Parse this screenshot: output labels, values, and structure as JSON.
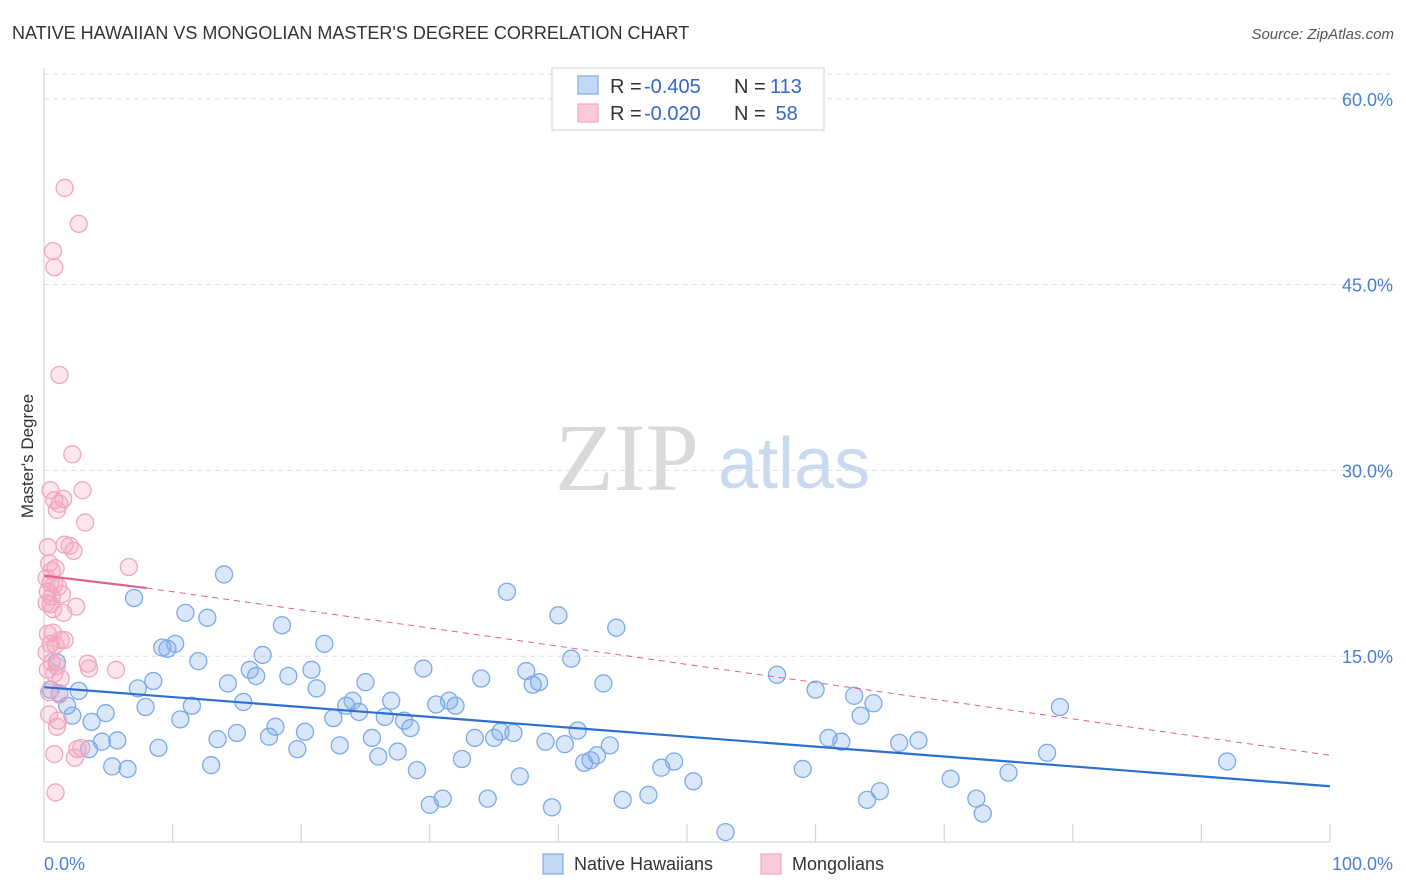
{
  "chart_data": {
    "type": "scatter",
    "title": "NATIVE HAWAIIAN VS MONGOLIAN MASTER'S DEGREE CORRELATION CHART",
    "source": "Source: ZipAtlas.com",
    "ylabel": "Master's Degree",
    "xlabel": "",
    "xlim": [
      0,
      100
    ],
    "ylim": [
      0,
      62
    ],
    "x_tick_labels": [
      "0.0%",
      "100.0%"
    ],
    "y_ticks": [
      {
        "value": 15,
        "label": "15.0%"
      },
      {
        "value": 30,
        "label": "30.0%"
      },
      {
        "value": 45,
        "label": "45.0%"
      },
      {
        "value": 60,
        "label": "60.0%"
      }
    ],
    "watermark": {
      "part1": "ZIP",
      "part2": "atlas"
    },
    "legend_stats": [
      {
        "r_label": "R = ",
        "r_value": "-0.405",
        "n_label": "N = ",
        "n_value": "113"
      },
      {
        "r_label": "R = ",
        "r_value": "-0.020",
        "n_label": "N = ",
        "n_value": " 58"
      }
    ],
    "series": [
      {
        "name": "Native Hawaiians",
        "color": "#7aaae8",
        "line_color": "#2b6fd0",
        "trend": {
          "x0": 0,
          "y0": 12.5,
          "x1": 100,
          "y1": 4.5
        },
        "points": [
          [
            0.5,
            12.3
          ],
          [
            1,
            14.5
          ],
          [
            1.2,
            12
          ],
          [
            1.8,
            11
          ],
          [
            2.2,
            10.2
          ],
          [
            2.7,
            12.2
          ],
          [
            3.5,
            7.5
          ],
          [
            3.7,
            9.7
          ],
          [
            4.5,
            8.1
          ],
          [
            4.8,
            10.4
          ],
          [
            5.3,
            6.1
          ],
          [
            5.7,
            8.2
          ],
          [
            6.5,
            5.9
          ],
          [
            7,
            19.7
          ],
          [
            7.3,
            12.4
          ],
          [
            7.9,
            10.9
          ],
          [
            8.5,
            13
          ],
          [
            8.9,
            7.6
          ],
          [
            9.2,
            15.7
          ],
          [
            9.6,
            15.6
          ],
          [
            10.2,
            16
          ],
          [
            10.6,
            9.9
          ],
          [
            11,
            18.5
          ],
          [
            11.5,
            11
          ],
          [
            12,
            14.6
          ],
          [
            12.7,
            18.1
          ],
          [
            13,
            6.2
          ],
          [
            13.5,
            8.3
          ],
          [
            14,
            21.6
          ],
          [
            14.3,
            12.8
          ],
          [
            15,
            8.8
          ],
          [
            15.5,
            11.3
          ],
          [
            16,
            13.9
          ],
          [
            16.5,
            13.4
          ],
          [
            17,
            15.1
          ],
          [
            17.5,
            8.5
          ],
          [
            18,
            9.3
          ],
          [
            18.5,
            17.5
          ],
          [
            19,
            13.4
          ],
          [
            19.7,
            7.5
          ],
          [
            20.3,
            8.9
          ],
          [
            20.8,
            13.9
          ],
          [
            21.2,
            12.4
          ],
          [
            21.8,
            16
          ],
          [
            22.5,
            10
          ],
          [
            23,
            7.8
          ],
          [
            23.5,
            11
          ],
          [
            24,
            11.4
          ],
          [
            24.5,
            10.5
          ],
          [
            25,
            12.9
          ],
          [
            25.5,
            8.4
          ],
          [
            26,
            6.9
          ],
          [
            26.5,
            10.1
          ],
          [
            27,
            11.4
          ],
          [
            27.5,
            7.3
          ],
          [
            28,
            9.8
          ],
          [
            28.5,
            9.2
          ],
          [
            29,
            5.8
          ],
          [
            29.5,
            14
          ],
          [
            30,
            3
          ],
          [
            30.5,
            11.1
          ],
          [
            31,
            3.5
          ],
          [
            31.5,
            11.4
          ],
          [
            32,
            11
          ],
          [
            32.5,
            6.7
          ],
          [
            33.5,
            8.4
          ],
          [
            34,
            13.2
          ],
          [
            34.5,
            3.5
          ],
          [
            35,
            8.4
          ],
          [
            35.5,
            8.9
          ],
          [
            36.5,
            8.8
          ],
          [
            37,
            5.3
          ],
          [
            37.5,
            13.8
          ],
          [
            38,
            12.7
          ],
          [
            38.5,
            12.9
          ],
          [
            39,
            8.1
          ],
          [
            39.5,
            2.8
          ],
          [
            40,
            18.3
          ],
          [
            40.5,
            7.9
          ],
          [
            41,
            14.8
          ],
          [
            41.5,
            9
          ],
          [
            42,
            6.4
          ],
          [
            42.5,
            6.6
          ],
          [
            43,
            7
          ],
          [
            43.5,
            12.8
          ],
          [
            44,
            7.8
          ],
          [
            44.5,
            17.3
          ],
          [
            45,
            3.4
          ],
          [
            47,
            3.8
          ],
          [
            48,
            6
          ],
          [
            49,
            6.5
          ],
          [
            50.5,
            4.9
          ],
          [
            53,
            0.8
          ],
          [
            57,
            13.5
          ],
          [
            59,
            5.9
          ],
          [
            60,
            12.3
          ],
          [
            61,
            8.4
          ],
          [
            62,
            8.1
          ],
          [
            63,
            11.8
          ],
          [
            63.5,
            10.2
          ],
          [
            64,
            3.4
          ],
          [
            64.5,
            11.2
          ],
          [
            65,
            4.1
          ],
          [
            66.5,
            8
          ],
          [
            68,
            8.2
          ],
          [
            70.5,
            5.1
          ],
          [
            72.5,
            3.5
          ],
          [
            73,
            2.3
          ],
          [
            75,
            5.6
          ],
          [
            78,
            7.2
          ],
          [
            79,
            10.9
          ],
          [
            92,
            6.5
          ],
          [
            36,
            20.2
          ]
        ]
      },
      {
        "name": "Mongolians",
        "color": "#f2a5bf",
        "line_color": "#e0628b",
        "trend": {
          "x0": 0,
          "y0": 21.5,
          "x1": 8,
          "y1": 20.5
        },
        "trend_ext": {
          "x0": 8,
          "y0": 20.5,
          "x1": 100,
          "y1": 7
        },
        "points": [
          [
            1.6,
            52.8
          ],
          [
            2.7,
            49.9
          ],
          [
            0.7,
            47.7
          ],
          [
            0.8,
            46.4
          ],
          [
            1.2,
            37.7
          ],
          [
            2.2,
            31.3
          ],
          [
            0.5,
            28.4
          ],
          [
            0.8,
            27.6
          ],
          [
            1.2,
            27.3
          ],
          [
            1.5,
            27.7
          ],
          [
            3,
            28.4
          ],
          [
            1,
            26.8
          ],
          [
            3.2,
            25.8
          ],
          [
            0.3,
            23.8
          ],
          [
            1.6,
            24
          ],
          [
            2,
            23.9
          ],
          [
            2.3,
            23.5
          ],
          [
            0.4,
            22.5
          ],
          [
            0.6,
            21.9
          ],
          [
            0.9,
            22.1
          ],
          [
            6.6,
            22.2
          ],
          [
            0.2,
            21.3
          ],
          [
            0.5,
            20.9
          ],
          [
            0.8,
            20.8
          ],
          [
            1.1,
            20.6
          ],
          [
            0.3,
            20.2
          ],
          [
            0.6,
            19.8
          ],
          [
            1.4,
            20
          ],
          [
            0.2,
            19.3
          ],
          [
            0.5,
            19.2
          ],
          [
            2.5,
            19
          ],
          [
            1.5,
            18.5
          ],
          [
            0.3,
            16.8
          ],
          [
            0.7,
            16.9
          ],
          [
            1.3,
            16.3
          ],
          [
            1.6,
            16.3
          ],
          [
            0.5,
            16
          ],
          [
            0.9,
            15.9
          ],
          [
            0.2,
            15.3
          ],
          [
            0.6,
            14.5
          ],
          [
            1,
            14.2
          ],
          [
            3.4,
            14.4
          ],
          [
            0.3,
            13.9
          ],
          [
            0.8,
            13.6
          ],
          [
            5.6,
            13.9
          ],
          [
            0.4,
            12.1
          ],
          [
            1.2,
            11.9
          ],
          [
            1,
            9.3
          ],
          [
            2.6,
            7.5
          ],
          [
            0.8,
            7.1
          ],
          [
            2.4,
            6.8
          ],
          [
            0.9,
            4
          ],
          [
            0.4,
            10.3
          ],
          [
            2.9,
            7.6
          ],
          [
            1.3,
            13.2
          ],
          [
            0.7,
            18.8
          ],
          [
            3.5,
            14
          ],
          [
            1.1,
            9.8
          ]
        ]
      }
    ]
  }
}
